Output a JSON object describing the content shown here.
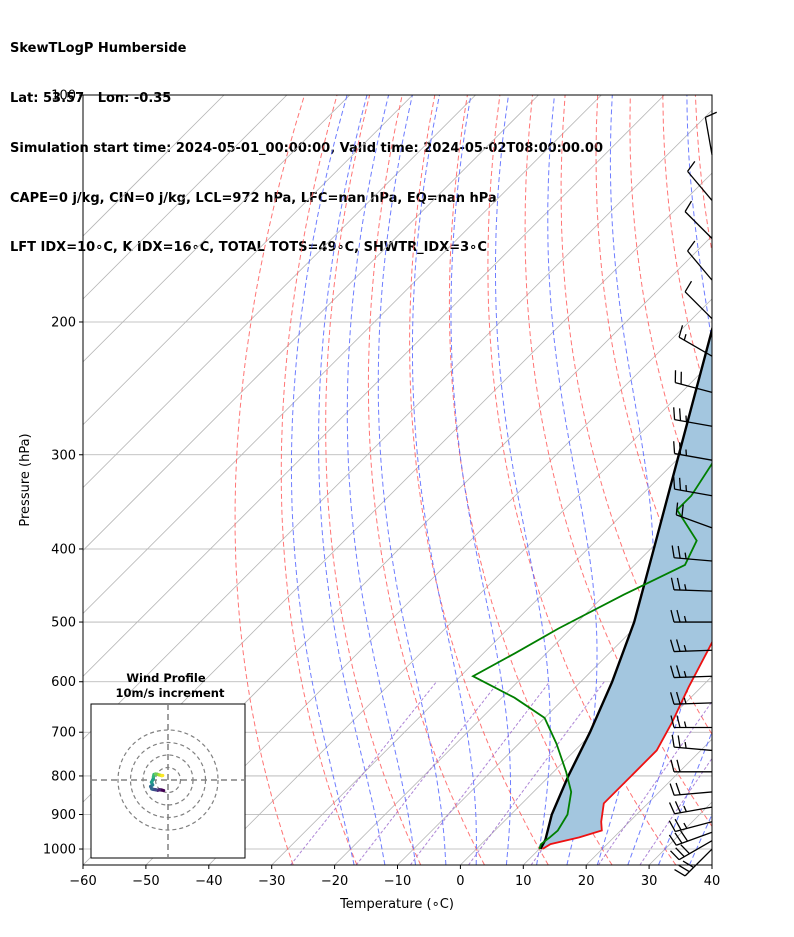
{
  "header": {
    "line1": "SkewTLogP Humberside",
    "line2": "Lat: 53.57   Lon: -0.35",
    "line3": "Simulation start time: 2024-05-01_00:00:00, Valid time: 2024-05-02T08:00:00.00",
    "line4": "CAPE=0 j/kg, CIN=0 j/kg, LCL=972 hPa, LFC=nan hPa, EQ=nan hPa",
    "line5": "LFT IDX=10∘C, K IDX=16∘C, TOTAL TOTS=49∘C, SHWTR_IDX=3∘C"
  },
  "colors": {
    "temperature": "#ee1111",
    "dewpoint": "#007f00",
    "parcel": "#000000",
    "fill": "#a3c6df",
    "dry_adiabat": "#ff6666",
    "moist_adiabat": "#5566ff",
    "isotherm": "#b5b5b5",
    "mixing_ratio": "#9966cc"
  },
  "chart_data": {
    "type": "line",
    "title": "",
    "xlabel": "Temperature (∘C)",
    "ylabel": "Pressure (hPa)",
    "xlim": [
      -60,
      40
    ],
    "ylim": [
      1050,
      100
    ],
    "yscale": "log",
    "skew": true,
    "grid": true,
    "x_ticks": [
      -60,
      -50,
      -40,
      -30,
      -20,
      -10,
      0,
      10,
      20,
      30,
      40
    ],
    "y_ticks": [
      100,
      200,
      300,
      400,
      500,
      600,
      700,
      800,
      900,
      1000
    ],
    "series": [
      {
        "key": "temperature",
        "points": [
          [
            10.5,
            1000
          ],
          [
            11,
            985
          ],
          [
            14.5,
            965
          ],
          [
            17,
            945
          ],
          [
            15.5,
            920
          ],
          [
            13,
            870
          ],
          [
            13,
            800
          ],
          [
            13,
            740
          ],
          [
            11,
            680
          ],
          [
            8,
            610
          ],
          [
            5,
            540
          ],
          [
            2,
            480
          ],
          [
            0,
            400
          ],
          [
            -4,
            350
          ],
          [
            -8,
            310
          ],
          [
            -12,
            270
          ],
          [
            -15,
            235
          ],
          [
            -15,
            215
          ],
          [
            -13,
            190
          ],
          [
            -7,
            170
          ],
          [
            -2,
            150
          ],
          [
            0,
            135
          ],
          [
            0,
            120
          ],
          [
            0,
            108
          ],
          [
            1,
            100
          ]
        ]
      },
      {
        "key": "dewpoint",
        "points": [
          [
            10,
            1000
          ],
          [
            9.5,
            985
          ],
          [
            9.8,
            965
          ],
          [
            10,
            945
          ],
          [
            9,
            900
          ],
          [
            6,
            840
          ],
          [
            2,
            790
          ],
          [
            -4,
            725
          ],
          [
            -10,
            670
          ],
          [
            -18,
            630
          ],
          [
            -28,
            590
          ],
          [
            -25,
            550
          ],
          [
            -22,
            510
          ],
          [
            -17,
            460
          ],
          [
            -12,
            420
          ],
          [
            -14,
            390
          ],
          [
            -22,
            355
          ],
          [
            -22,
            340
          ],
          [
            -24,
            305
          ],
          [
            -28,
            270
          ],
          [
            -31,
            248
          ],
          [
            -31,
            232
          ],
          [
            -28,
            218
          ],
          [
            -31,
            200
          ],
          [
            -37,
            180
          ],
          [
            -45,
            160
          ],
          [
            -42,
            140
          ],
          [
            -38,
            120
          ],
          [
            -33,
            100
          ]
        ]
      },
      {
        "key": "parcel",
        "points": [
          [
            10.2,
            1000
          ],
          [
            9.5,
            972
          ],
          [
            6.5,
            900
          ],
          [
            3,
            800
          ],
          [
            -0.5,
            700
          ],
          [
            -5,
            600
          ],
          [
            -11,
            500
          ],
          [
            -19.5,
            400
          ],
          [
            -30.5,
            300
          ],
          [
            -46,
            200
          ],
          [
            -60.5,
            150
          ],
          [
            -77,
            100
          ]
        ]
      }
    ],
    "wind_barbs": [
      {
        "p": 1000,
        "dir": 225,
        "kt": 30
      },
      {
        "p": 975,
        "dir": 240,
        "kt": 30
      },
      {
        "p": 950,
        "dir": 250,
        "kt": 30
      },
      {
        "p": 920,
        "dir": 255,
        "kt": 25
      },
      {
        "p": 880,
        "dir": 260,
        "kt": 25
      },
      {
        "p": 840,
        "dir": 265,
        "kt": 20
      },
      {
        "p": 790,
        "dir": 270,
        "kt": 20
      },
      {
        "p": 740,
        "dir": 275,
        "kt": 25
      },
      {
        "p": 690,
        "dir": 270,
        "kt": 25
      },
      {
        "p": 640,
        "dir": 268,
        "kt": 25
      },
      {
        "p": 590,
        "dir": 268,
        "kt": 25
      },
      {
        "p": 545,
        "dir": 268,
        "kt": 25
      },
      {
        "p": 500,
        "dir": 270,
        "kt": 25
      },
      {
        "p": 455,
        "dir": 272,
        "kt": 25
      },
      {
        "p": 415,
        "dir": 275,
        "kt": 25
      },
      {
        "p": 375,
        "dir": 290,
        "kt": 20
      },
      {
        "p": 340,
        "dir": 280,
        "kt": 25
      },
      {
        "p": 305,
        "dir": 280,
        "kt": 25
      },
      {
        "p": 275,
        "dir": 280,
        "kt": 25
      },
      {
        "p": 248,
        "dir": 285,
        "kt": 20
      },
      {
        "p": 222,
        "dir": 300,
        "kt": 15
      },
      {
        "p": 198,
        "dir": 315,
        "kt": 10
      },
      {
        "p": 176,
        "dir": 320,
        "kt": 10
      },
      {
        "p": 155,
        "dir": 315,
        "kt": 10
      },
      {
        "p": 138,
        "dir": 320,
        "kt": 10
      },
      {
        "p": 120,
        "dir": 350,
        "kt": 10
      }
    ],
    "hodograph": {
      "title": "Wind Profile",
      "subtitle": "10m/s increment",
      "ring_step": 10,
      "points": [
        [
          -3.5,
          -8.4
        ],
        [
          -5.2,
          -8.0
        ],
        [
          -6.8,
          -7.8
        ],
        [
          -8.2,
          -8.2
        ],
        [
          -9.8,
          -7.8
        ],
        [
          -11.8,
          -7.5
        ],
        [
          -12.9,
          -7.2
        ],
        [
          -13.9,
          -5.2
        ],
        [
          -12.3,
          -3.9
        ],
        [
          -13.2,
          -1.8
        ],
        [
          -11.8,
          0.8
        ],
        [
          -11.6,
          2.8
        ],
        [
          -11.2,
          4.4
        ],
        [
          -10.0,
          4.8
        ],
        [
          -8.6,
          4.6
        ],
        [
          -7.2,
          4.1
        ],
        [
          -6.0,
          3.8
        ],
        [
          -5.0,
          3.5
        ],
        [
          -4.2,
          3.6
        ]
      ]
    },
    "background_lines": {
      "isotherms_step": 10,
      "dry_adiabat_thetas_C": [
        -30,
        -20,
        -10,
        0,
        10,
        20,
        30,
        40,
        50,
        60,
        70,
        80,
        90,
        100,
        110,
        120,
        140,
        160
      ],
      "moist_adiabat_start_C": [
        -20,
        -15,
        -10,
        -5,
        0,
        5,
        10,
        15,
        20,
        25,
        30,
        35
      ],
      "mixing_ratios": [
        0.4,
        1,
        2,
        4,
        8,
        16,
        24
      ]
    }
  }
}
